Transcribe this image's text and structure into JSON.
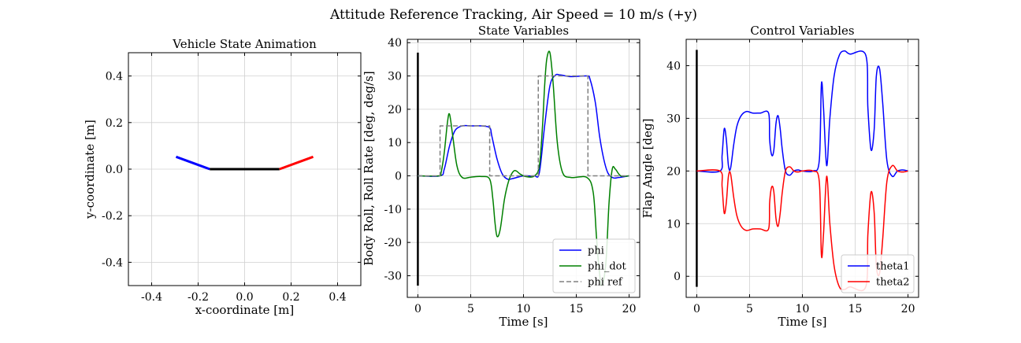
{
  "figure": {
    "suptitle": "Attitude Reference Tracking, Air Speed = 10 m/s (+y)"
  },
  "colors": {
    "blue": "#0000ff",
    "green": "#008000",
    "red": "#ff0000",
    "gray": "#808080",
    "black": "#000000",
    "grid": "#d0d0d0"
  },
  "chart_data": [
    {
      "type": "line",
      "title": "Vehicle State Animation",
      "xlabel": "x-coordinate [m]",
      "ylabel": "y-coordinate [m]",
      "xlim": [
        -0.5,
        0.5
      ],
      "ylim": [
        -0.5,
        0.5
      ],
      "xticks": [
        -0.4,
        -0.2,
        0.0,
        0.2,
        0.4
      ],
      "xtick_labels": [
        "-0.4",
        "-0.2",
        "0.0",
        "0.2",
        "0.4"
      ],
      "yticks": [
        -0.4,
        -0.2,
        0.0,
        0.2,
        0.4
      ],
      "ytick_labels": [
        "-0.4",
        "-0.2",
        "0.0",
        "0.2",
        "0.4"
      ],
      "grid": true,
      "segments": [
        {
          "color": "blue",
          "x": [
            -0.295,
            -0.15
          ],
          "y": [
            0.053,
            0.0
          ]
        },
        {
          "color": "black",
          "x": [
            -0.15,
            0.15
          ],
          "y": [
            0.0,
            0.0
          ]
        },
        {
          "color": "red",
          "x": [
            0.15,
            0.295
          ],
          "y": [
            0.0,
            0.053
          ]
        }
      ]
    },
    {
      "type": "line",
      "title": "State Variables",
      "xlabel": "Time [s]",
      "ylabel": "Body Roll, Roll Rate [deg, deg/s]",
      "xlim": [
        -1,
        21
      ],
      "ylim": [
        -36.5,
        41
      ],
      "xticks": [
        0,
        5,
        10,
        15,
        20
      ],
      "xtick_labels": [
        "0",
        "5",
        "10",
        "15",
        "20"
      ],
      "yticks": [
        -30,
        -20,
        -10,
        0,
        10,
        20,
        30,
        40
      ],
      "ytick_labels": [
        "-30",
        "-20",
        "-10",
        "0",
        "10",
        "20",
        "30",
        "40"
      ],
      "grid": true,
      "legend_position": "lower-right",
      "time_marker": {
        "x": 0,
        "y": [
          -33,
          37
        ]
      },
      "series": [
        {
          "name": "phi",
          "color": "blue",
          "style": "solid",
          "x": [
            0,
            2.1,
            2.5,
            3.0,
            3.5,
            4.0,
            4.5,
            5.0,
            6.0,
            6.8,
            7.0,
            7.5,
            8.0,
            8.5,
            9.0,
            10.0,
            11.0,
            11.5,
            12.0,
            12.5,
            13.0,
            13.5,
            14.5,
            16.0,
            16.3,
            16.8,
            17.2,
            17.6,
            18.0,
            18.5,
            19.0,
            20.0
          ],
          "y": [
            0,
            0,
            2,
            9,
            13.5,
            14.8,
            15.1,
            15,
            15,
            14.5,
            12,
            5,
            0.5,
            -1,
            -0.8,
            0,
            0,
            1,
            15,
            27,
            30.2,
            30.3,
            29.8,
            30,
            29,
            22,
            12,
            5,
            0.8,
            -0.6,
            -0.5,
            0
          ]
        },
        {
          "name": "phi_dot",
          "color": "green",
          "style": "solid",
          "x": [
            0,
            2.0,
            2.2,
            2.5,
            2.8,
            3.0,
            3.3,
            3.7,
            4.2,
            5.0,
            6.0,
            6.8,
            7.1,
            7.3,
            7.5,
            7.8,
            8.2,
            8.6,
            9.0,
            9.3,
            9.7,
            10.2,
            11.0,
            11.5,
            11.8,
            12.0,
            12.2,
            12.5,
            12.8,
            13.2,
            13.7,
            14.5,
            16.0,
            16.6,
            16.9,
            17.1,
            17.4,
            17.8,
            18.1,
            18.4,
            18.7,
            19.2,
            20.0
          ],
          "y": [
            0,
            0,
            1,
            7,
            16,
            18.5,
            12,
            3,
            -0.5,
            -0.4,
            -0.2,
            -1,
            -7,
            -14,
            -18.2,
            -16,
            -7,
            -1.5,
            1.2,
            1.5,
            0.5,
            -0.2,
            -0.1,
            3,
            15,
            27,
            35,
            37,
            28,
            10,
            1,
            -0.5,
            -0.5,
            -5,
            -18,
            -26,
            -33,
            -26,
            -8,
            2,
            2,
            0,
            0
          ]
        },
        {
          "name": "phi ref",
          "color": "gray",
          "style": "dashed",
          "x": [
            0,
            2.1,
            2.1,
            6.8,
            6.8,
            11.4,
            11.4,
            16.1,
            16.1,
            20
          ],
          "y": [
            0,
            0,
            15,
            15,
            0,
            0,
            30,
            30,
            0,
            0
          ]
        }
      ]
    },
    {
      "type": "line",
      "title": "Control Variables",
      "xlabel": "Time [s]",
      "ylabel": "Flap Angle [deg]",
      "xlim": [
        -1,
        21
      ],
      "ylim": [
        -4,
        45
      ],
      "xticks": [
        0,
        5,
        10,
        15,
        20
      ],
      "xtick_labels": [
        "0",
        "5",
        "10",
        "15",
        "20"
      ],
      "yticks": [
        0,
        10,
        20,
        30,
        40
      ],
      "ytick_labels": [
        "0",
        "10",
        "20",
        "30",
        "40"
      ],
      "grid": true,
      "legend_position": "lower-right",
      "time_marker": {
        "x": 0,
        "y": [
          -2,
          43
        ]
      },
      "series": [
        {
          "name": "theta1",
          "color": "blue",
          "style": "solid",
          "x": [
            0,
            2.2,
            2.4,
            2.6,
            2.8,
            3.0,
            3.2,
            3.5,
            3.8,
            4.2,
            4.7,
            5.3,
            6.0,
            6.8,
            6.9,
            7.1,
            7.3,
            7.5,
            7.7,
            7.9,
            8.1,
            8.4,
            8.8,
            9.2,
            9.6,
            10.0,
            11.0,
            11.6,
            11.8,
            12.0,
            12.3,
            12.6,
            13.0,
            13.5,
            14.0,
            14.5,
            16.0,
            16.2,
            16.5,
            16.8,
            17.0,
            17.3,
            17.6,
            18.0,
            18.5,
            19.0,
            19.5,
            20.0
          ],
          "y": [
            20,
            20,
            23,
            28,
            26,
            21,
            20.5,
            25,
            28.5,
            30.5,
            31.3,
            31,
            31,
            31,
            26,
            23,
            24,
            29,
            30.5,
            28,
            24,
            20,
            19.2,
            20,
            20.2,
            20,
            20,
            22,
            36.5,
            32,
            21,
            30,
            38,
            42,
            42.8,
            42.2,
            42,
            32,
            24,
            28,
            38,
            39.5,
            33,
            22,
            19,
            20,
            20.2,
            20
          ]
        },
        {
          "name": "theta2",
          "color": "red",
          "style": "solid",
          "x": [
            0,
            2.2,
            2.4,
            2.6,
            2.8,
            3.0,
            3.2,
            3.5,
            3.8,
            4.2,
            4.7,
            5.3,
            6.0,
            6.8,
            6.9,
            7.1,
            7.3,
            7.5,
            7.7,
            7.9,
            8.1,
            8.4,
            8.8,
            9.2,
            9.6,
            10.0,
            11.0,
            11.6,
            11.8,
            12.0,
            12.3,
            12.6,
            13.0,
            13.5,
            14.0,
            14.5,
            16.0,
            16.2,
            16.5,
            16.8,
            17.0,
            17.3,
            17.6,
            18.0,
            18.5,
            19.0,
            19.5,
            20.0
          ],
          "y": [
            20,
            20,
            17,
            12,
            14,
            19,
            19.5,
            15,
            11.5,
            9.5,
            8.7,
            9,
            9,
            9,
            14,
            17,
            16,
            11,
            9.5,
            12,
            16,
            20,
            20.8,
            20,
            19.8,
            20,
            20,
            18,
            4,
            8,
            19,
            10,
            2,
            -2,
            -2.5,
            -2,
            -2,
            8,
            16,
            12,
            2,
            0.5,
            7,
            18,
            21,
            20,
            19.8,
            20
          ]
        }
      ]
    }
  ]
}
